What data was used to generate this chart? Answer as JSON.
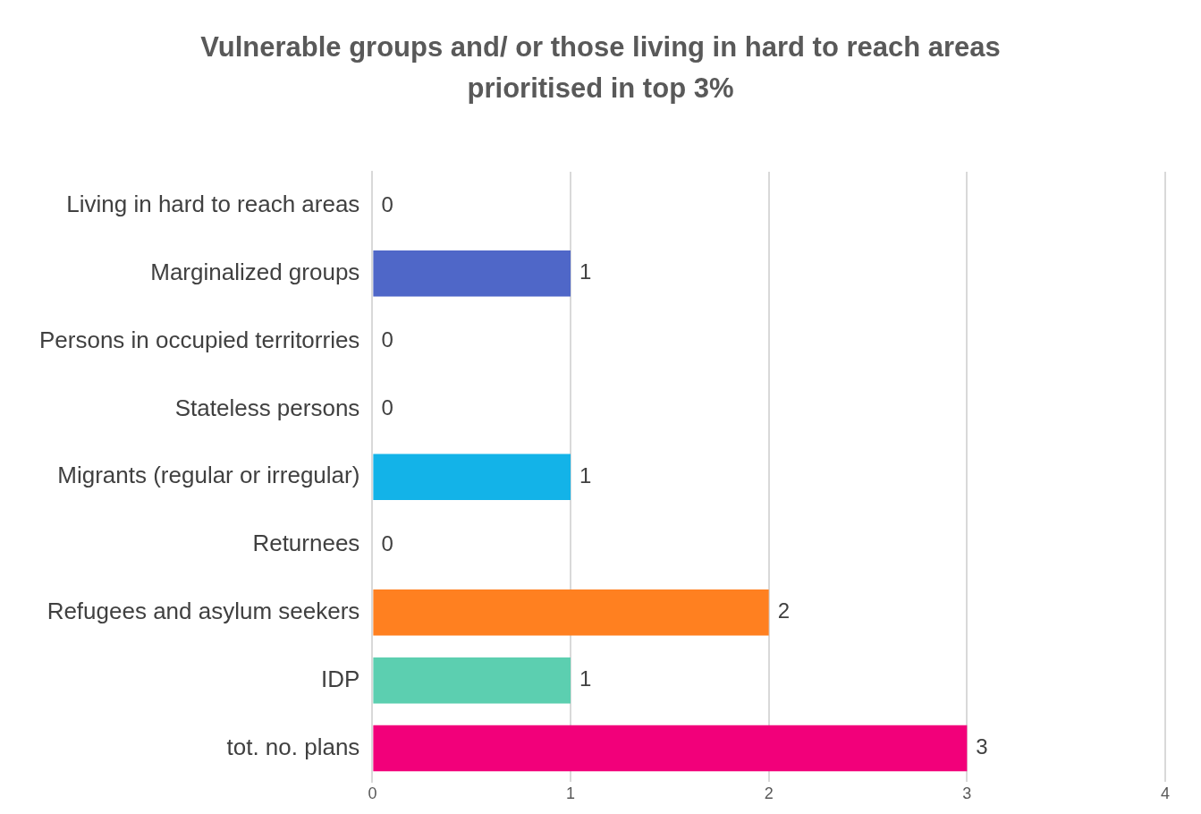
{
  "chart_data": {
    "type": "bar",
    "orientation": "horizontal",
    "title": "Vulnerable groups and/ or those living in hard to reach areas prioritised in top 3%",
    "categories": [
      "Living in hard to reach areas",
      "Marginalized groups",
      "Persons in occupied territorries",
      "Stateless persons",
      "Migrants (regular or irregular)",
      "Returnees",
      "Refugees and asylum seekers",
      "IDP",
      "tot. no. plans"
    ],
    "values": [
      0,
      1,
      0,
      0,
      1,
      0,
      2,
      1,
      3
    ],
    "colors": [
      "#4f67c8",
      "#4f67c8",
      "#4f67c8",
      "#4f67c8",
      "#13b3e8",
      "#4f67c8",
      "#ff8020",
      "#5ccfb0",
      "#f2007a"
    ],
    "xlim": [
      0,
      4
    ],
    "xticks": [
      0,
      1,
      2,
      3,
      4
    ],
    "grid": "x",
    "legend": false,
    "data_labels": true
  }
}
